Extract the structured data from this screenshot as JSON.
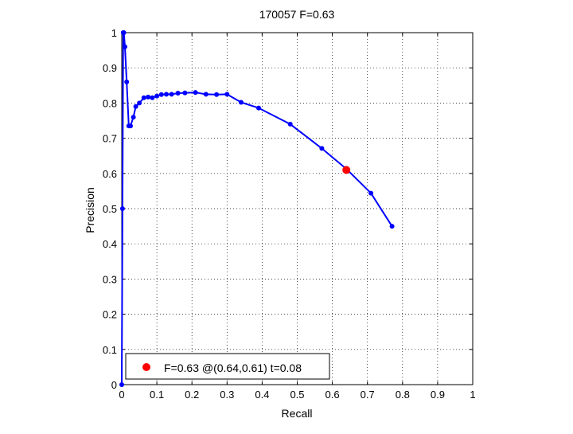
{
  "chart_data": {
    "type": "line",
    "title": "170057 F=0.63",
    "xlabel": "Recall",
    "ylabel": "Precision",
    "xlim": [
      0,
      1
    ],
    "ylim": [
      0,
      1
    ],
    "grid": true,
    "legend_position": "bottom-left",
    "x_ticks": [
      "0",
      "0.1",
      "0.2",
      "0.3",
      "0.4",
      "0.5",
      "0.6",
      "0.7",
      "0.8",
      "0.9",
      "1"
    ],
    "y_ticks": [
      "0",
      "0.1",
      "0.2",
      "0.3",
      "0.4",
      "0.5",
      "0.6",
      "0.7",
      "0.8",
      "0.9",
      "1"
    ],
    "series": [
      {
        "color": "#0000ff",
        "marker": "dot",
        "x": [
          0.0,
          0.002,
          0.004,
          0.006,
          0.009,
          0.014,
          0.02,
          0.025,
          0.033,
          0.04,
          0.05,
          0.063,
          0.075,
          0.087,
          0.1,
          0.113,
          0.127,
          0.142,
          0.16,
          0.18,
          0.21,
          0.24,
          0.27,
          0.3,
          0.34,
          0.39,
          0.48,
          0.57,
          0.64,
          0.71,
          0.77
        ],
        "y": [
          0.0,
          0.5,
          1.0,
          1.0,
          0.96,
          0.86,
          0.735,
          0.735,
          0.76,
          0.79,
          0.8,
          0.815,
          0.817,
          0.815,
          0.82,
          0.824,
          0.825,
          0.825,
          0.828,
          0.829,
          0.83,
          0.825,
          0.824,
          0.825,
          0.802,
          0.786,
          0.74,
          0.671,
          0.613,
          0.544,
          0.45
        ]
      }
    ],
    "best_point": {
      "x": 0.64,
      "y": 0.61,
      "color": "#ff0000",
      "label": "F=0.63 @(0.64,0.61) t=0.08"
    }
  }
}
